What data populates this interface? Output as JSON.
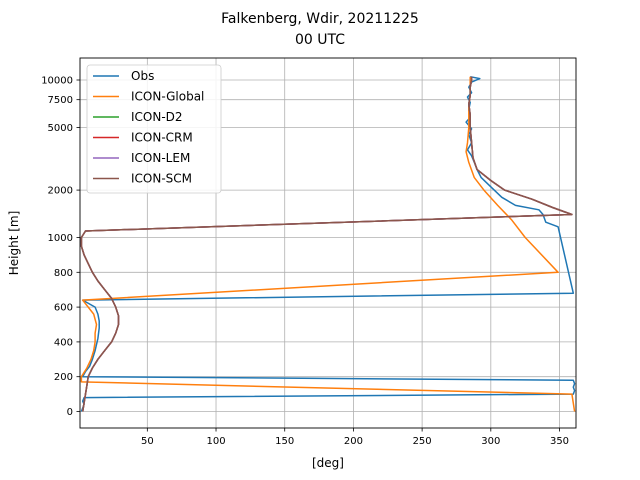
{
  "chart_data": {
    "type": "line",
    "title": "Falkenberg, Wdir, 20211225",
    "subtitle": "00 UTC",
    "xlabel": "[deg]",
    "ylabel": "Height [m]",
    "xlim": [
      1,
      362
    ],
    "x_ticks": [
      50,
      100,
      150,
      200,
      250,
      300,
      350
    ],
    "y_ticks": [
      {
        "h": 0,
        "label": "0"
      },
      {
        "h": 200,
        "label": "200"
      },
      {
        "h": 400,
        "label": "400"
      },
      {
        "h": 600,
        "label": "600"
      },
      {
        "h": 800,
        "label": "800"
      },
      {
        "h": 1000,
        "label": "1000"
      },
      {
        "h": 2000,
        "label": "2000"
      },
      {
        "h": 5000,
        "label": "5000"
      },
      {
        "h": 7500,
        "label": "7500"
      },
      {
        "h": 10000,
        "label": "10000"
      }
    ],
    "y_scale": "piecewise: linear 0-1000 m, logarithmic above 1000 m",
    "grid": true,
    "legend_position": "top-left",
    "series": [
      {
        "name": "Obs",
        "color": "#1f77b4",
        "points": [
          [
            2,
            0
          ],
          [
            3,
            20
          ],
          [
            4,
            40
          ],
          [
            3,
            60
          ],
          [
            4,
            80
          ],
          [
            360,
            100
          ],
          [
            361,
            120
          ],
          [
            360,
            140
          ],
          [
            361,
            160
          ],
          [
            360,
            180
          ],
          [
            3,
            200
          ],
          [
            5,
            230
          ],
          [
            8,
            260
          ],
          [
            10,
            300
          ],
          [
            12,
            350
          ],
          [
            14,
            420
          ],
          [
            15,
            480
          ],
          [
            15,
            520
          ],
          [
            14,
            560
          ],
          [
            12,
            600
          ],
          [
            3,
            640
          ],
          [
            360,
            680
          ],
          [
            349,
            1170
          ],
          [
            340,
            1250
          ],
          [
            338,
            1400
          ],
          [
            335,
            1500
          ],
          [
            318,
            1600
          ],
          [
            308,
            1800
          ],
          [
            300,
            2100
          ],
          [
            293,
            2400
          ],
          [
            290,
            2700
          ],
          [
            288,
            3000
          ],
          [
            286,
            3300
          ],
          [
            283,
            3600
          ],
          [
            286,
            4000
          ],
          [
            284,
            4500
          ],
          [
            286,
            4900
          ],
          [
            282,
            5400
          ],
          [
            285,
            5800
          ],
          [
            284,
            6500
          ],
          [
            285,
            7200
          ],
          [
            283,
            7800
          ],
          [
            286,
            8300
          ],
          [
            284,
            9000
          ],
          [
            286,
            9700
          ],
          [
            292,
            10200
          ],
          [
            285,
            10500
          ]
        ]
      },
      {
        "name": "ICON-Global",
        "color": "#ff7f0e",
        "points": [
          [
            361,
            0
          ],
          [
            359,
            100
          ],
          [
            2,
            170
          ],
          [
            2,
            200
          ],
          [
            6,
            250
          ],
          [
            9,
            300
          ],
          [
            11,
            350
          ],
          [
            12,
            400
          ],
          [
            12,
            450
          ],
          [
            13,
            500
          ],
          [
            11,
            560
          ],
          [
            7,
            600
          ],
          [
            3,
            640
          ],
          [
            349,
            800
          ],
          [
            325,
            1000
          ],
          [
            315,
            1300
          ],
          [
            305,
            1600
          ],
          [
            295,
            2000
          ],
          [
            288,
            2400
          ],
          [
            284,
            3000
          ],
          [
            282,
            3500
          ],
          [
            283,
            4000
          ],
          [
            284,
            5000
          ],
          [
            284,
            6000
          ],
          [
            284,
            7000
          ],
          [
            285,
            8000
          ],
          [
            285,
            9000
          ],
          [
            285,
            10000
          ],
          [
            285,
            10500
          ]
        ]
      },
      {
        "name": "ICON-D2",
        "color": "#2ca02c",
        "points": [
          [
            3,
            0
          ],
          [
            4,
            50
          ],
          [
            5,
            100
          ],
          [
            6,
            150
          ],
          [
            7,
            200
          ],
          [
            10,
            250
          ],
          [
            14,
            300
          ],
          [
            19,
            350
          ],
          [
            24,
            400
          ],
          [
            27,
            450
          ],
          [
            29,
            500
          ],
          [
            29,
            550
          ],
          [
            27,
            600
          ],
          [
            24,
            650
          ],
          [
            19,
            700
          ],
          [
            14,
            750
          ],
          [
            10,
            800
          ],
          [
            7,
            850
          ],
          [
            4,
            900
          ],
          [
            2,
            950
          ],
          [
            2,
            1000
          ],
          [
            5,
            1100
          ],
          [
            359,
            1400
          ],
          [
            345,
            1550
          ],
          [
            330,
            1750
          ],
          [
            310,
            2000
          ],
          [
            300,
            2300
          ],
          [
            290,
            2700
          ],
          [
            287,
            3200
          ],
          [
            286,
            4000
          ],
          [
            285,
            5000
          ],
          [
            285,
            6000
          ],
          [
            284,
            7000
          ],
          [
            285,
            8000
          ],
          [
            285,
            9000
          ],
          [
            286,
            10000
          ],
          [
            286,
            10500
          ]
        ]
      },
      {
        "name": "ICON-CRM",
        "color": "#d62728",
        "points": [
          [
            3,
            0
          ],
          [
            4,
            50
          ],
          [
            5,
            100
          ],
          [
            6,
            150
          ],
          [
            7,
            200
          ],
          [
            10,
            250
          ],
          [
            14,
            300
          ],
          [
            19,
            350
          ],
          [
            24,
            400
          ],
          [
            27,
            450
          ],
          [
            29,
            500
          ],
          [
            29,
            550
          ],
          [
            27,
            600
          ],
          [
            24,
            650
          ],
          [
            19,
            700
          ],
          [
            14,
            750
          ],
          [
            10,
            800
          ],
          [
            7,
            850
          ],
          [
            4,
            900
          ],
          [
            2,
            950
          ],
          [
            2,
            1000
          ],
          [
            5,
            1100
          ],
          [
            359,
            1400
          ],
          [
            345,
            1550
          ],
          [
            330,
            1750
          ],
          [
            310,
            2000
          ],
          [
            300,
            2300
          ],
          [
            290,
            2700
          ],
          [
            287,
            3200
          ],
          [
            286,
            4000
          ],
          [
            285,
            5000
          ],
          [
            285,
            6000
          ],
          [
            284,
            7000
          ],
          [
            285,
            8000
          ],
          [
            285,
            9000
          ],
          [
            286,
            10000
          ],
          [
            286,
            10500
          ]
        ]
      },
      {
        "name": "ICON-LEM",
        "color": "#9467bd",
        "points": [
          [
            3,
            0
          ],
          [
            4,
            50
          ],
          [
            5,
            100
          ],
          [
            6,
            150
          ],
          [
            7,
            200
          ],
          [
            10,
            250
          ],
          [
            14,
            300
          ],
          [
            19,
            350
          ],
          [
            24,
            400
          ],
          [
            27,
            450
          ],
          [
            29,
            500
          ],
          [
            29,
            550
          ],
          [
            27,
            600
          ],
          [
            24,
            650
          ],
          [
            19,
            700
          ],
          [
            14,
            750
          ],
          [
            10,
            800
          ],
          [
            7,
            850
          ],
          [
            4,
            900
          ],
          [
            2,
            950
          ],
          [
            2,
            1000
          ],
          [
            5,
            1100
          ],
          [
            359,
            1400
          ],
          [
            345,
            1550
          ],
          [
            330,
            1750
          ],
          [
            310,
            2000
          ],
          [
            300,
            2300
          ],
          [
            290,
            2700
          ],
          [
            287,
            3200
          ],
          [
            286,
            4000
          ],
          [
            285,
            5000
          ],
          [
            285,
            6000
          ],
          [
            284,
            7000
          ],
          [
            285,
            8000
          ],
          [
            285,
            9000
          ],
          [
            286,
            10000
          ],
          [
            286,
            10500
          ]
        ]
      },
      {
        "name": "ICON-SCM",
        "color": "#8c564b",
        "points": [
          [
            3,
            0
          ],
          [
            4,
            50
          ],
          [
            5,
            100
          ],
          [
            6,
            150
          ],
          [
            7,
            200
          ],
          [
            10,
            250
          ],
          [
            14,
            300
          ],
          [
            19,
            350
          ],
          [
            24,
            400
          ],
          [
            27,
            450
          ],
          [
            29,
            500
          ],
          [
            29,
            550
          ],
          [
            27,
            600
          ],
          [
            24,
            650
          ],
          [
            19,
            700
          ],
          [
            14,
            750
          ],
          [
            10,
            800
          ],
          [
            7,
            850
          ],
          [
            4,
            900
          ],
          [
            2,
            950
          ],
          [
            2,
            1000
          ],
          [
            5,
            1100
          ],
          [
            359,
            1400
          ],
          [
            345,
            1550
          ],
          [
            330,
            1750
          ],
          [
            310,
            2000
          ],
          [
            300,
            2300
          ],
          [
            290,
            2700
          ],
          [
            287,
            3200
          ],
          [
            286,
            4000
          ],
          [
            285,
            5000
          ],
          [
            285,
            6000
          ],
          [
            284,
            7000
          ],
          [
            285,
            8000
          ],
          [
            285,
            9000
          ],
          [
            286,
            10000
          ],
          [
            286,
            10500
          ]
        ]
      }
    ]
  }
}
